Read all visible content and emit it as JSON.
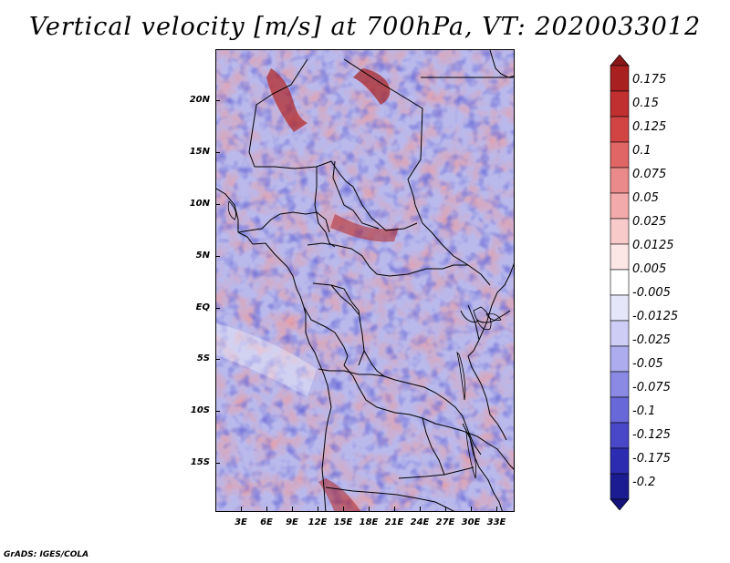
{
  "title": "Vertical velocity [m/s] at 700hPa, VT: 2020033012",
  "footer": "GrADS: IGES/COLA",
  "map": {
    "lat_labels": [
      "20N",
      "15N",
      "10N",
      "5N",
      "EQ",
      "5S",
      "10S",
      "15S"
    ],
    "lon_labels": [
      "3E",
      "6E",
      "9E",
      "12E",
      "15E",
      "18E",
      "21E",
      "24E",
      "27E",
      "30E",
      "33E"
    ]
  },
  "colorbar": {
    "labels": [
      "0.175",
      "0.15",
      "0.125",
      "0.1",
      "0.075",
      "0.05",
      "0.025",
      "0.0125",
      "0.005",
      "-0.005",
      "-0.0125",
      "-0.025",
      "-0.05",
      "-0.075",
      "-0.1",
      "-0.125",
      "-0.175",
      "-0.2"
    ],
    "colors": [
      "#8a1818",
      "#a82020",
      "#c03030",
      "#d24444",
      "#e06565",
      "#ea8a8a",
      "#f2aaaa",
      "#f8caca",
      "#fce6e6",
      "#ffffff",
      "#e6e6fb",
      "#cdcdf5",
      "#acacee",
      "#8a8ae4",
      "#6868d8",
      "#4848c8",
      "#2c2cb0",
      "#1c1c92",
      "#14147a"
    ]
  }
}
